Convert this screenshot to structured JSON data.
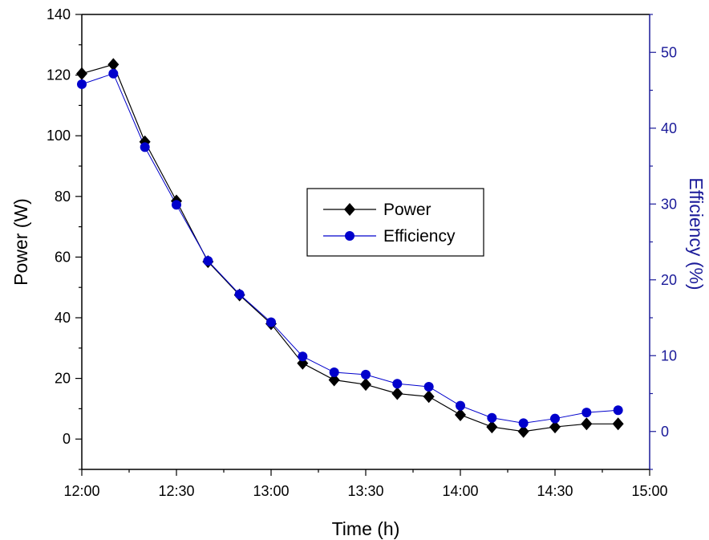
{
  "chart_data": {
    "type": "line",
    "x_axis": {
      "label": "Time (h)",
      "ticks": [
        "12:00",
        "12:30",
        "13:00",
        "13:30",
        "14:00",
        "14:30",
        "15:00"
      ],
      "range": [
        "12:00",
        "15:00"
      ]
    },
    "y_left": {
      "label": "Power (W)",
      "ticks": [
        0,
        20,
        40,
        60,
        80,
        100,
        120,
        140
      ],
      "range": [
        -10,
        140
      ]
    },
    "y_right": {
      "label": "Efficiency (%)",
      "ticks": [
        0,
        10,
        20,
        30,
        40,
        50
      ],
      "range": [
        -5,
        55
      ]
    },
    "x": [
      "12:00",
      "12:10",
      "12:20",
      "12:30",
      "12:40",
      "12:50",
      "13:00",
      "13:10",
      "13:20",
      "13:30",
      "13:40",
      "13:50",
      "14:00",
      "14:10",
      "14:20",
      "14:30",
      "14:40",
      "14:50"
    ],
    "series": [
      {
        "name": "Power",
        "axis": "left",
        "color": "#000000",
        "marker": "diamond",
        "values": [
          120.5,
          123.5,
          98,
          78.5,
          58.5,
          47.5,
          38,
          25,
          19.5,
          18,
          15,
          14,
          8,
          4,
          2.5,
          4,
          5,
          5
        ]
      },
      {
        "name": "Efficiency",
        "axis": "right",
        "color": "#0000cc",
        "marker": "circle",
        "values": [
          45.8,
          47.2,
          37.5,
          29.9,
          22.5,
          18.1,
          14.4,
          9.9,
          7.8,
          7.5,
          6.3,
          5.9,
          3.4,
          1.8,
          1.1,
          1.7,
          2.5,
          2.8
        ]
      }
    ],
    "legend": {
      "position": "center",
      "entries": [
        "Power",
        "Efficiency"
      ]
    },
    "grid": false
  }
}
